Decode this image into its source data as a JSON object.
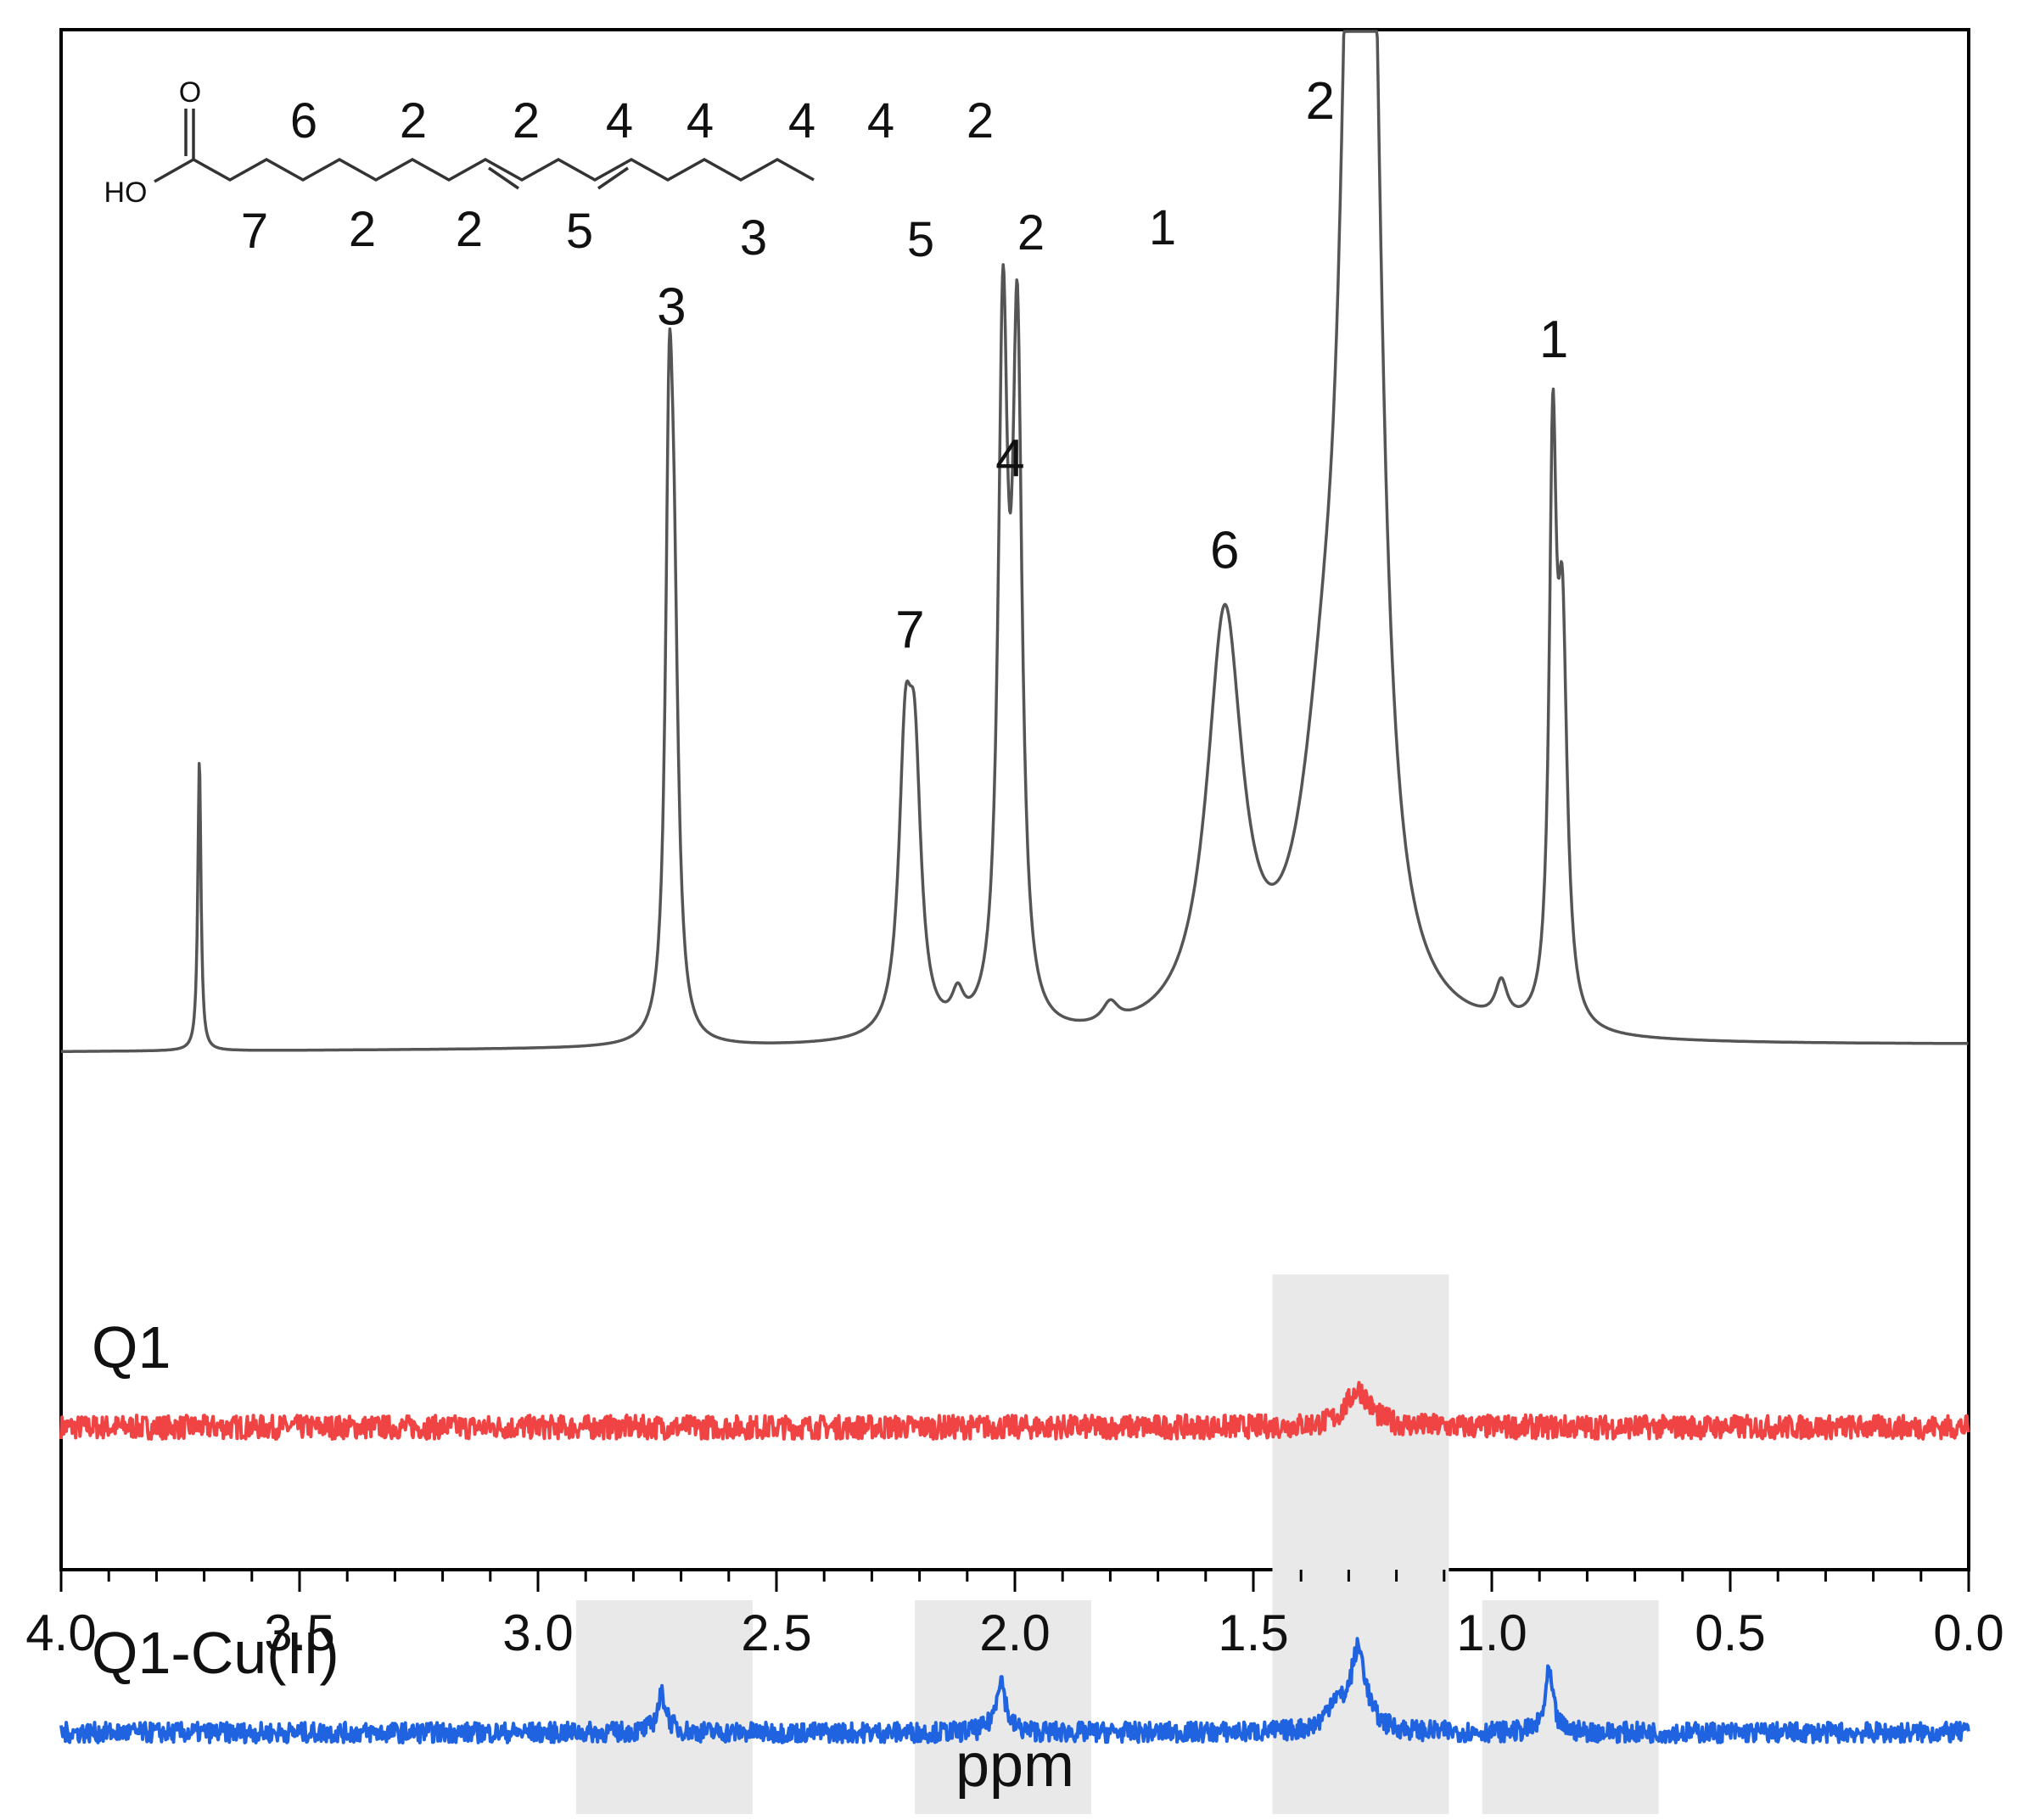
{
  "chart_data": {
    "type": "line",
    "xlabel": "ppm",
    "xlim": [
      4.0,
      0.0
    ],
    "x_reversed": true,
    "x_ticks": [
      "4.0",
      "3.5",
      "3.0",
      "2.5",
      "2.0",
      "1.5",
      "1.0",
      "0.5",
      "0.0"
    ],
    "x_tick_values": [
      4.0,
      3.5,
      3.0,
      2.5,
      2.0,
      1.5,
      1.0,
      0.5,
      0.0
    ],
    "y_ticks": [],
    "grid": false,
    "series": [
      {
        "name": "",
        "color": "#555555",
        "baseline": 0.0,
        "peaks": [
          {
            "center": 3.71,
            "height": 0.172,
            "width": 0.004
          },
          {
            "center": 2.725,
            "height": 0.3,
            "width": 0.009
          },
          {
            "center": 2.715,
            "height": 0.21,
            "width": 0.011
          },
          {
            "center": 2.23,
            "height": 0.15,
            "width": 0.016
          },
          {
            "center": 2.21,
            "height": 0.14,
            "width": 0.016
          },
          {
            "center": 2.12,
            "height": 0.018,
            "width": 0.015
          },
          {
            "center": 2.025,
            "height": 0.4,
            "width": 0.012
          },
          {
            "center": 1.995,
            "height": 0.39,
            "width": 0.012
          },
          {
            "center": 1.8,
            "height": 0.012,
            "width": 0.02
          },
          {
            "center": 1.56,
            "height": 0.24,
            "width": 0.045
          },
          {
            "center": 1.35,
            "height": 0.14,
            "width": 0.06
          },
          {
            "center": 1.255,
            "height": 0.6,
            "width": 0.028
          },
          {
            "center": 1.295,
            "height": 0.5,
            "width": 0.026
          },
          {
            "center": 0.98,
            "height": 0.022,
            "width": 0.015
          },
          {
            "center": 0.872,
            "height": 0.32,
            "width": 0.009
          },
          {
            "center": 0.852,
            "height": 0.22,
            "width": 0.012
          }
        ],
        "labels": [
          {
            "text": "3",
            "ppm": 2.72
          },
          {
            "text": "7",
            "ppm": 2.22
          },
          {
            "text": "4",
            "ppm": 2.01
          },
          {
            "text": "6",
            "ppm": 1.56
          },
          {
            "text": "2",
            "ppm": 1.36
          },
          {
            "text": "1",
            "ppm": 0.87
          }
        ]
      },
      {
        "name": "Q1",
        "color": "#f04444",
        "baseline": -0.225,
        "noise": 0.007,
        "peaks": [
          {
            "center": 1.28,
            "height": 0.022,
            "width": 0.03
          }
        ]
      },
      {
        "name": "Q1-Cu(II)",
        "color": "#1f63e0",
        "baseline": -0.405,
        "noise": 0.006,
        "peaks": [
          {
            "center": 2.74,
            "height": 0.022,
            "width": 0.012
          },
          {
            "center": 2.03,
            "height": 0.032,
            "width": 0.012
          },
          {
            "center": 1.28,
            "height": 0.048,
            "width": 0.02
          },
          {
            "center": 1.33,
            "height": 0.015,
            "width": 0.02
          },
          {
            "center": 0.88,
            "height": 0.035,
            "width": 0.01
          }
        ]
      }
    ],
    "highlights": [
      {
        "ppm": [
          2.92,
          2.55
        ],
        "series": "Q1-Cu(II)"
      },
      {
        "ppm": [
          2.21,
          1.84
        ],
        "series": "Q1-Cu(II)"
      },
      {
        "ppm": [
          1.46,
          1.09
        ],
        "series": "both"
      },
      {
        "ppm": [
          1.02,
          0.65
        ],
        "series": "Q1-Cu(II)"
      }
    ],
    "highlight_color": "#e9e9e9",
    "inset_structure": {
      "atom_labels": [
        "O",
        "HO"
      ],
      "upper_numbers": [
        "6",
        "2",
        "2",
        "4",
        "4",
        "4",
        "4",
        "2"
      ],
      "lower_numbers": [
        "7",
        "2",
        "2",
        "5",
        "3",
        "5",
        "2",
        "1"
      ]
    }
  }
}
